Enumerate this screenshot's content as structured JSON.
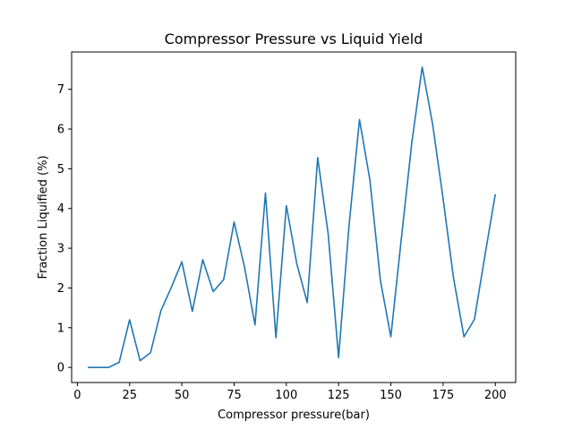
{
  "chart_data": {
    "type": "line",
    "title": "Compressor Pressure vs Liquid Yield",
    "xlabel": "Compressor pressure(bar)",
    "ylabel": "Fraction Liquified (%)",
    "xlim": [
      -2.75,
      209.75
    ],
    "ylim": [
      -0.38,
      7.94
    ],
    "xticks": [
      0,
      25,
      50,
      75,
      100,
      125,
      150,
      175,
      200
    ],
    "yticks": [
      0,
      1,
      2,
      3,
      4,
      5,
      6,
      7
    ],
    "grid": false,
    "series": [
      {
        "color": "#1f77b4",
        "x": [
          5,
          10,
          15,
          20,
          25,
          30,
          35,
          40,
          45,
          50,
          55,
          60,
          65,
          70,
          75,
          80,
          85,
          90,
          95,
          100,
          105,
          110,
          115,
          120,
          125,
          130,
          135,
          140,
          145,
          150,
          155,
          160,
          165,
          170,
          175,
          180,
          185,
          190,
          195,
          200
        ],
        "y": [
          0.0,
          0.0,
          0.0,
          0.13,
          1.2,
          0.17,
          0.37,
          1.43,
          2.02,
          2.66,
          1.41,
          2.71,
          1.91,
          2.21,
          3.66,
          2.52,
          1.07,
          4.39,
          0.75,
          4.07,
          2.61,
          1.63,
          5.28,
          3.37,
          0.25,
          3.57,
          6.24,
          4.71,
          2.19,
          0.77,
          3.23,
          5.64,
          7.56,
          6.12,
          4.25,
          2.25,
          0.77,
          1.21,
          2.81,
          4.36
        ]
      }
    ]
  }
}
